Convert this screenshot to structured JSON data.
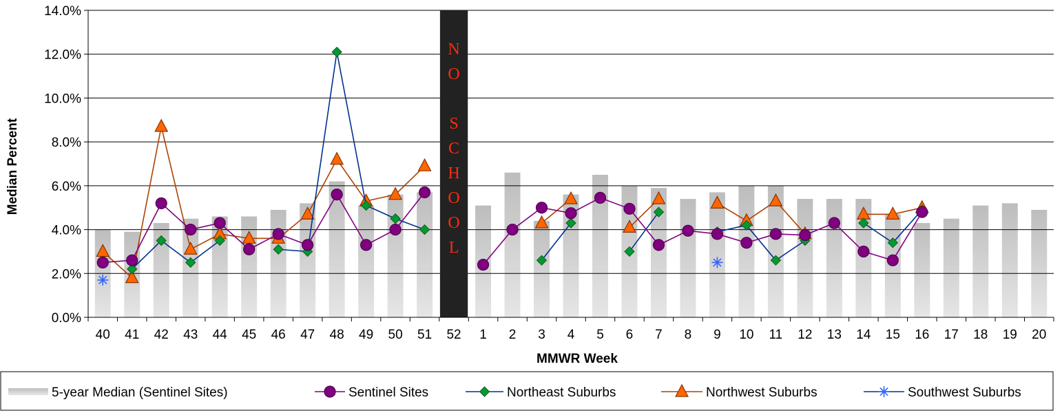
{
  "chart_data": {
    "type": "bar",
    "xlabel": "MMWR Week",
    "ylabel": "Median Percent",
    "ylim": [
      0,
      14
    ],
    "y_ticks": [
      "0.0%",
      "2.0%",
      "4.0%",
      "6.0%",
      "8.0%",
      "10.0%",
      "12.0%",
      "14.0%"
    ],
    "grid": true,
    "legend_position": "bottom",
    "categories": [
      "40",
      "41",
      "42",
      "43",
      "44",
      "45",
      "46",
      "47",
      "48",
      "49",
      "50",
      "51",
      "52",
      "1",
      "2",
      "3",
      "4",
      "5",
      "6",
      "7",
      "8",
      "9",
      "10",
      "11",
      "12",
      "13",
      "14",
      "15",
      "16",
      "17",
      "18",
      "19",
      "20"
    ],
    "annotation": {
      "category": "52",
      "letters": [
        "N",
        "O",
        "",
        "S",
        "C",
        "H",
        "O",
        "O",
        "L"
      ]
    },
    "bar_series": {
      "name": "5-year Median (Sentinel Sites)",
      "values": [
        4.0,
        3.9,
        4.3,
        4.5,
        4.6,
        4.6,
        4.9,
        5.2,
        6.2,
        5.1,
        5.6,
        5.7,
        null,
        5.1,
        6.6,
        4.4,
        5.6,
        6.5,
        6.0,
        5.9,
        5.4,
        5.7,
        6.0,
        6.0,
        5.4,
        5.4,
        5.4,
        4.7,
        4.3,
        4.5,
        5.1,
        5.2,
        4.9
      ],
      "color": "#c8c8c8"
    },
    "series": [
      {
        "name": "Sentinel Sites",
        "marker": "circle",
        "color": "#800080",
        "values": [
          2.5,
          2.6,
          5.2,
          4.0,
          4.3,
          3.1,
          3.8,
          3.3,
          5.6,
          3.3,
          4.0,
          5.7,
          null,
          2.4,
          4.0,
          5.0,
          4.75,
          5.45,
          4.95,
          3.3,
          3.95,
          3.8,
          3.4,
          3.8,
          3.75,
          4.3,
          3.0,
          2.6,
          4.8,
          null,
          null,
          null,
          null
        ]
      },
      {
        "name": "Northeast Suburbs",
        "marker": "diamond",
        "color": "#00308f",
        "marker_color": "#009933",
        "values": [
          null,
          2.2,
          3.5,
          2.5,
          3.5,
          null,
          3.1,
          3.0,
          12.1,
          5.1,
          4.5,
          4.0,
          null,
          null,
          null,
          2.6,
          4.3,
          null,
          3.0,
          4.8,
          null,
          3.9,
          4.2,
          2.6,
          3.5,
          null,
          4.3,
          3.4,
          4.9,
          null,
          null,
          null,
          null
        ]
      },
      {
        "name": "Northwest Suburbs",
        "marker": "triangle",
        "color": "#b04000",
        "marker_color": "#ff6600",
        "values": [
          3.0,
          1.8,
          8.7,
          3.1,
          3.8,
          3.6,
          3.6,
          4.7,
          7.2,
          5.3,
          5.6,
          6.9,
          null,
          null,
          null,
          4.3,
          5.4,
          null,
          4.1,
          5.4,
          null,
          5.2,
          4.4,
          5.3,
          3.8,
          null,
          4.7,
          4.7,
          5.0,
          null,
          null,
          null,
          null
        ]
      },
      {
        "name": "Southwest Suburbs",
        "marker": "asterisk",
        "color": "#00308f",
        "marker_color": "#3366ff",
        "values": [
          1.7,
          null,
          null,
          null,
          null,
          null,
          null,
          null,
          null,
          null,
          null,
          null,
          null,
          null,
          null,
          null,
          null,
          null,
          null,
          null,
          null,
          2.5,
          null,
          null,
          null,
          null,
          null,
          null,
          null,
          null,
          null,
          null,
          null
        ]
      }
    ]
  }
}
